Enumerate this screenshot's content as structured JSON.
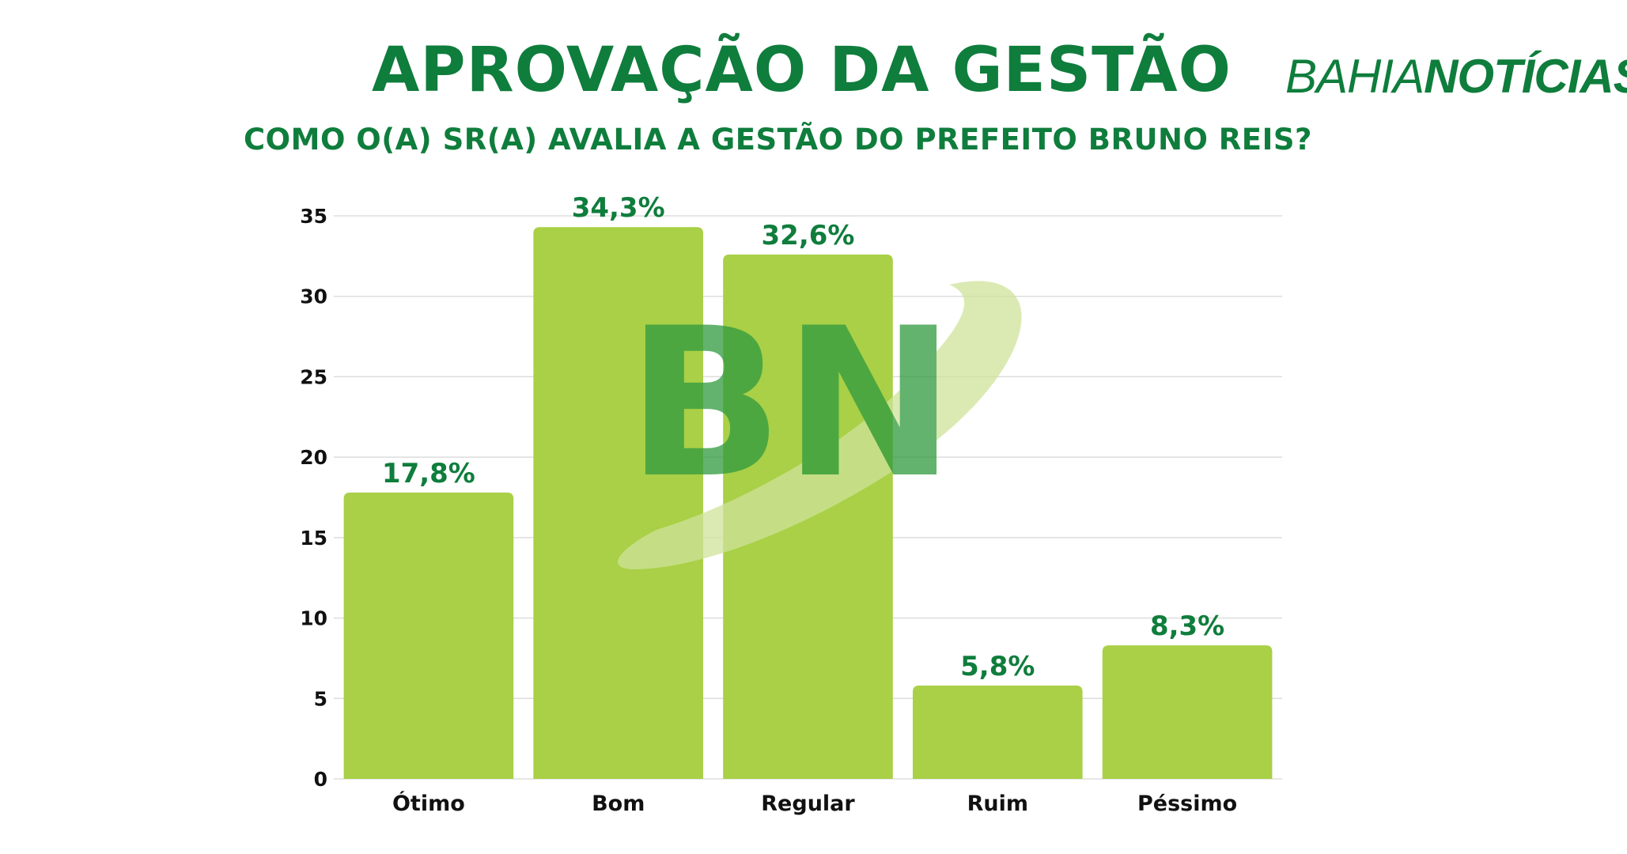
{
  "header": {
    "title": "APROVAÇÃO DA GESTÃO",
    "subtitle": "COMO O(A) SR(A) AVALIA A GESTÃO DO PREFEITO BRUNO REIS?"
  },
  "brand": {
    "part1": "BAHIA",
    "part2": "NOTÍCIAS",
    "watermark": "BN"
  },
  "colors": {
    "title": "#0f7d3c",
    "bar": "#a9d046",
    "grid": "#dddddd",
    "watermark_dark": "#2f9a3e",
    "watermark_light": "#cfe39a"
  },
  "chart_data": {
    "type": "bar",
    "categories": [
      "Ótimo",
      "Bom",
      "Regular",
      "Ruim",
      "Péssimo"
    ],
    "values": [
      17.8,
      34.3,
      32.6,
      5.8,
      8.3
    ],
    "data_labels": [
      "17,8%",
      "34,3%",
      "32,6%",
      "5,8%",
      "8,3%"
    ],
    "yticks": [
      0,
      5,
      10,
      15,
      20,
      25,
      30,
      35
    ],
    "ylim": [
      0,
      35
    ],
    "grid": true,
    "legend": "none"
  }
}
